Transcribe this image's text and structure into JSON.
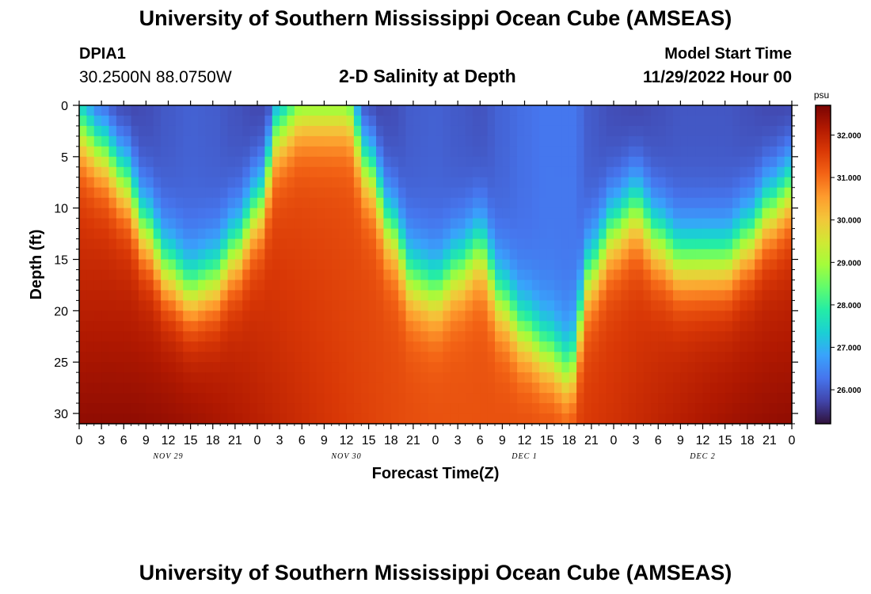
{
  "header": {
    "title": "University of Southern Mississippi Ocean Cube (AMSEAS)",
    "station_id": "DPIA1",
    "station_coords": "30.2500N  88.0750W",
    "plot_title": "2-D Salinity at Depth",
    "model_start_label": "Model Start Time",
    "model_start_value": "11/29/2022 Hour 00"
  },
  "footer": {
    "title": "University of Southern Mississippi Ocean Cube (AMSEAS)"
  },
  "chart_data": {
    "type": "heatmap",
    "title": "2-D Salinity at Depth",
    "xlabel": "Forecast Time(Z)",
    "ylabel": "Depth (ft)",
    "x_hours_range": [
      0,
      96
    ],
    "x_tick_step_hours": 3,
    "x_tick_labels": [
      "0",
      "3",
      "6",
      "9",
      "12",
      "15",
      "18",
      "21",
      "0",
      "3",
      "6",
      "9",
      "12",
      "15",
      "18",
      "21",
      "0",
      "3",
      "6",
      "9",
      "12",
      "15",
      "18",
      "21",
      "0",
      "3",
      "6",
      "9",
      "12",
      "15",
      "18",
      "21",
      "0"
    ],
    "date_labels": [
      {
        "text": "NOV 29",
        "hour": 12
      },
      {
        "text": "NOV 30",
        "hour": 36
      },
      {
        "text": "DEC 1",
        "hour": 60
      },
      {
        "text": "DEC 2",
        "hour": 84
      }
    ],
    "y_range_ft": [
      0,
      31
    ],
    "y_ticks": [
      0,
      5,
      10,
      15,
      20,
      25,
      30
    ],
    "colorbar": {
      "unit": "psu",
      "range": [
        25.2,
        32.7
      ],
      "ticks": [
        26.0,
        27.0,
        28.0,
        29.0,
        30.0,
        31.0,
        32.0
      ],
      "tick_labels": [
        "26.000",
        "27.000",
        "28.000",
        "29.000",
        "30.000",
        "31.000",
        "32.000"
      ],
      "colors": [
        "#30123b",
        "#4145ab",
        "#4675ed",
        "#39a2fc",
        "#1bcfd4",
        "#24eca6",
        "#61fc6c",
        "#a4fc3b",
        "#d1e834",
        "#f3c63a",
        "#fe9b2d",
        "#f36315",
        "#d93806",
        "#b11901",
        "#7a0403"
      ]
    },
    "surface_depth_ft": {
      "hours": [
        0,
        3,
        6,
        9,
        12,
        15,
        18,
        21,
        24,
        27,
        30,
        33,
        36,
        39,
        42,
        45,
        48,
        51,
        54,
        57,
        60,
        63,
        66,
        69,
        72,
        75,
        78,
        81,
        84,
        87,
        90,
        93,
        96
      ],
      "values": [
        2,
        4,
        7,
        12,
        16,
        18,
        17,
        14,
        10,
        2,
        0,
        0,
        0,
        6,
        12,
        17,
        18,
        16,
        14,
        19,
        22,
        24,
        26,
        16,
        12,
        10,
        13,
        15,
        15,
        15,
        13,
        10,
        8
      ]
    },
    "salinity_range_psu": {
      "surface_min": 25.4,
      "bottom_max": 32.6
    }
  }
}
